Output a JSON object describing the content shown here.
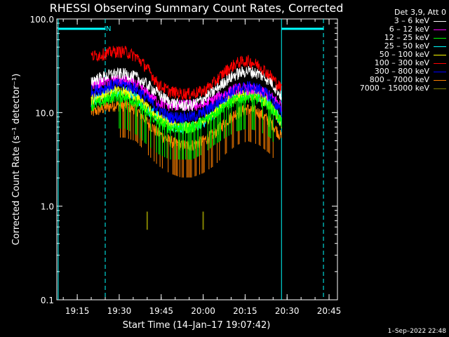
{
  "chart_data": {
    "type": "line",
    "title": "RHESSI Observing Summary Count Rates, Corrected",
    "xlabel": "Start Time (14–Jan–17 19:07:42)",
    "ylabel": "Corrected Count Rate (s⁻¹ detector⁻¹)",
    "yscale": "log",
    "ylim": [
      0.1,
      100
    ],
    "xlim": [
      "19:07:42",
      "20:48:00"
    ],
    "ytick_labels": [
      "0.1",
      "1.0",
      "10.0",
      "100.0"
    ],
    "xtick_labels": [
      "19:15",
      "19:30",
      "19:45",
      "20:00",
      "20:15",
      "20:30",
      "20:45"
    ],
    "legend_header": "Det 3,9, Att 0",
    "night_label": "N",
    "series": [
      {
        "name": "3 – 6 keV",
        "color": "#ffffff",
        "x": [
          "19:20",
          "19:24",
          "19:28",
          "19:32",
          "19:36",
          "19:40",
          "19:44",
          "19:48",
          "19:52",
          "19:56",
          "20:00",
          "20:04",
          "20:08",
          "20:12",
          "20:16",
          "20:20",
          "20:24",
          "20:28"
        ],
        "values": [
          22,
          24,
          26,
          26,
          24,
          20,
          16,
          13,
          12,
          12,
          14,
          17,
          22,
          26,
          28,
          26,
          22,
          15
        ]
      },
      {
        "name": "6 – 12 keV",
        "color": "#ff00ff",
        "x": [
          "19:20",
          "19:24",
          "19:28",
          "19:32",
          "19:36",
          "19:40",
          "19:44",
          "19:48",
          "19:52",
          "19:56",
          "20:00",
          "20:04",
          "20:08",
          "20:12",
          "20:16",
          "20:20",
          "20:24",
          "20:28"
        ],
        "values": [
          20,
          21,
          22,
          22,
          20,
          16,
          13,
          12,
          12,
          12,
          12,
          14,
          16,
          18,
          18,
          17,
          15,
          12
        ]
      },
      {
        "name": "12 – 25 keV",
        "color": "#00ff00",
        "x": [
          "19:20",
          "19:24",
          "19:28",
          "19:32",
          "19:36",
          "19:40",
          "19:44",
          "19:48",
          "19:52",
          "19:56",
          "20:00",
          "20:04",
          "20:08",
          "20:12",
          "20:16",
          "20:20",
          "20:24",
          "20:28"
        ],
        "values": [
          12,
          13,
          15,
          15,
          13,
          10,
          8,
          7,
          7,
          7,
          8,
          10,
          12,
          14,
          15,
          14,
          12,
          8
        ]
      },
      {
        "name": "25 – 50 keV",
        "color": "#00ffff",
        "x": [
          "19:20",
          "19:24",
          "19:28",
          "19:32",
          "19:36",
          "19:40",
          "19:44",
          "19:48",
          "19:52",
          "19:56",
          "20:00",
          "20:04",
          "20:08",
          "20:12",
          "20:16",
          "20:20",
          "20:24",
          "20:28"
        ],
        "values": [
          13,
          15,
          17,
          17,
          15,
          11,
          9,
          7.5,
          7,
          7,
          8,
          10,
          13,
          15,
          16,
          15,
          12,
          8
        ]
      },
      {
        "name": "50 – 100 keV",
        "color": "#ffff00",
        "x": [
          "19:20",
          "19:24",
          "19:28",
          "19:32",
          "19:36",
          "19:40",
          "19:44",
          "19:48",
          "19:52",
          "19:56",
          "20:00",
          "20:04",
          "20:08",
          "20:12",
          "20:16",
          "20:20",
          "20:24",
          "20:28"
        ],
        "values": [
          14,
          15,
          17,
          17,
          15,
          11,
          9,
          7.5,
          7,
          7,
          8,
          10,
          13,
          15,
          16,
          15,
          12,
          8
        ]
      },
      {
        "name": "100 – 300 keV",
        "color": "#ff0000",
        "x": [
          "19:20",
          "19:24",
          "19:28",
          "19:32",
          "19:36",
          "19:40",
          "19:44",
          "19:48",
          "19:52",
          "19:56",
          "20:00",
          "20:04",
          "20:08",
          "20:12",
          "20:16",
          "20:20",
          "20:24",
          "20:28"
        ],
        "values": [
          40,
          42,
          45,
          45,
          40,
          30,
          20,
          17,
          16,
          16,
          17,
          21,
          28,
          34,
          36,
          32,
          25,
          18
        ]
      },
      {
        "name": "300 – 800 keV",
        "color": "#0000ff",
        "x": [
          "19:20",
          "19:24",
          "19:28",
          "19:32",
          "19:36",
          "19:40",
          "19:44",
          "19:48",
          "19:52",
          "19:56",
          "20:00",
          "20:04",
          "20:08",
          "20:12",
          "20:16",
          "20:20",
          "20:24",
          "20:28"
        ],
        "values": [
          17,
          18,
          20,
          20,
          18,
          14,
          11,
          9,
          9,
          9,
          10,
          12,
          15,
          18,
          19,
          18,
          15,
          10
        ]
      },
      {
        "name": "800 – 7000 keV",
        "color": "#ff8000",
        "x": [
          "19:20",
          "19:24",
          "19:28",
          "19:32",
          "19:36",
          "19:40",
          "19:44",
          "19:48",
          "19:52",
          "19:56",
          "20:00",
          "20:04",
          "20:08",
          "20:12",
          "20:16",
          "20:20",
          "20:24",
          "20:28"
        ],
        "values": [
          10,
          11,
          12,
          12,
          11,
          8,
          6,
          5,
          4.5,
          4.5,
          5,
          6,
          8,
          10,
          11,
          10,
          8,
          5.5
        ]
      },
      {
        "name": "7000 – 15000 keV",
        "color": "#808000",
        "x": [
          "19:40",
          "20:00"
        ],
        "values": [
          0.7,
          0.7
        ]
      }
    ]
  },
  "footer": {
    "date": "1–Sep–2022 22:48"
  }
}
